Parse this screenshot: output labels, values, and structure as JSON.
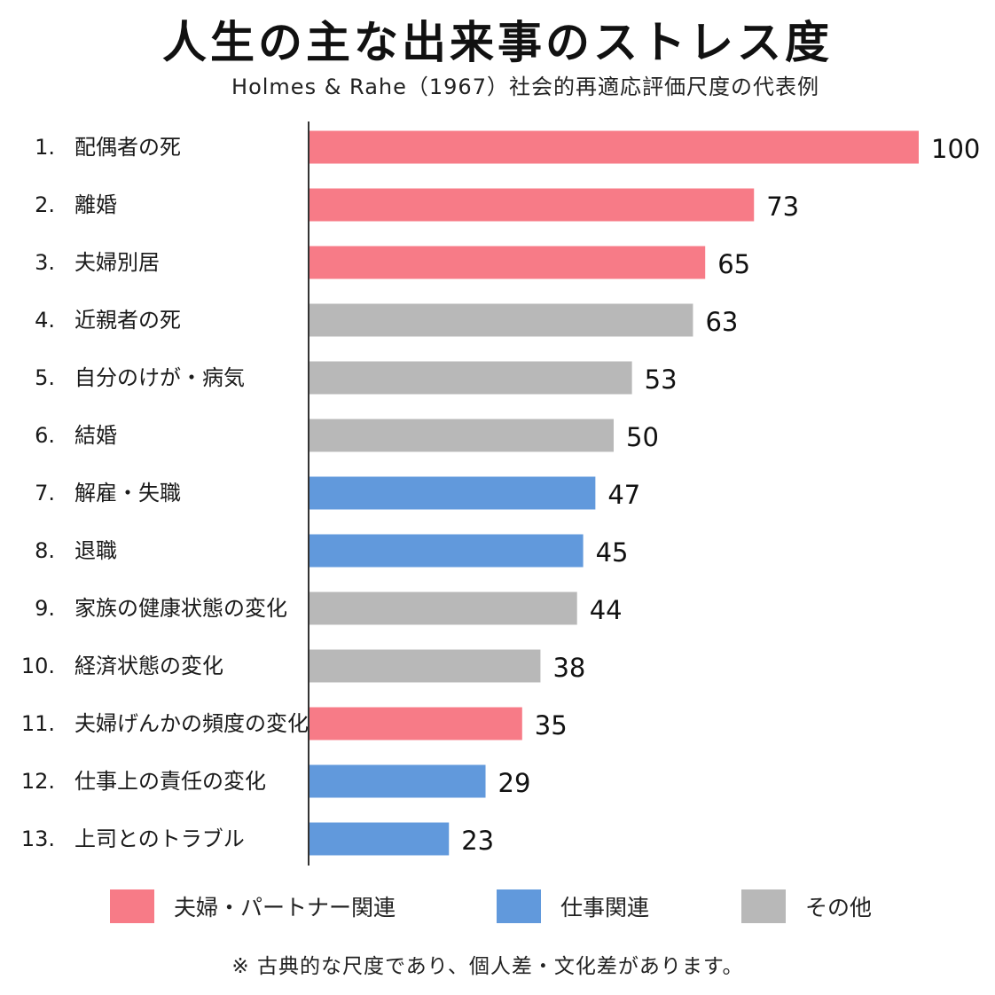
{
  "title": "人生の主な出来事のストレス度",
  "subtitle": "Holmes & Rahe（1967）社会的再適応評価尺度の代表例",
  "footnote": "※ 古典的な尺度であり、個人差・文化差があります。",
  "colors": {
    "partner": "#f77b87",
    "work": "#6199dc",
    "other": "#b8b8b8"
  },
  "legend": [
    {
      "key": "partner",
      "label": "夫婦・パートナー関連"
    },
    {
      "key": "work",
      "label": "仕事関連"
    },
    {
      "key": "other",
      "label": "その他"
    }
  ],
  "chart_data": {
    "type": "bar",
    "orientation": "horizontal",
    "xlim": [
      0,
      100
    ],
    "grid": false,
    "legend_position": "bottom",
    "categories": [
      {
        "rank": "1.",
        "label": "配偶者の死",
        "value": 100,
        "group": "partner"
      },
      {
        "rank": "2.",
        "label": "離婚",
        "value": 73,
        "group": "partner"
      },
      {
        "rank": "3.",
        "label": "夫婦別居",
        "value": 65,
        "group": "partner"
      },
      {
        "rank": "4.",
        "label": "近親者の死",
        "value": 63,
        "group": "other"
      },
      {
        "rank": "5.",
        "label": "自分のけが・病気",
        "value": 53,
        "group": "other"
      },
      {
        "rank": "6.",
        "label": "結婚",
        "value": 50,
        "group": "other"
      },
      {
        "rank": "7.",
        "label": "解雇・失職",
        "value": 47,
        "group": "work"
      },
      {
        "rank": "8.",
        "label": "退職",
        "value": 45,
        "group": "work"
      },
      {
        "rank": "9.",
        "label": "家族の健康状態の変化",
        "value": 44,
        "group": "other"
      },
      {
        "rank": "10.",
        "label": "経済状態の変化",
        "value": 38,
        "group": "other"
      },
      {
        "rank": "11.",
        "label": "夫婦げんかの頻度の変化",
        "value": 35,
        "group": "partner"
      },
      {
        "rank": "12.",
        "label": "仕事上の責任の変化",
        "value": 29,
        "group": "work"
      },
      {
        "rank": "13.",
        "label": "上司とのトラブル",
        "value": 23,
        "group": "work"
      }
    ]
  }
}
